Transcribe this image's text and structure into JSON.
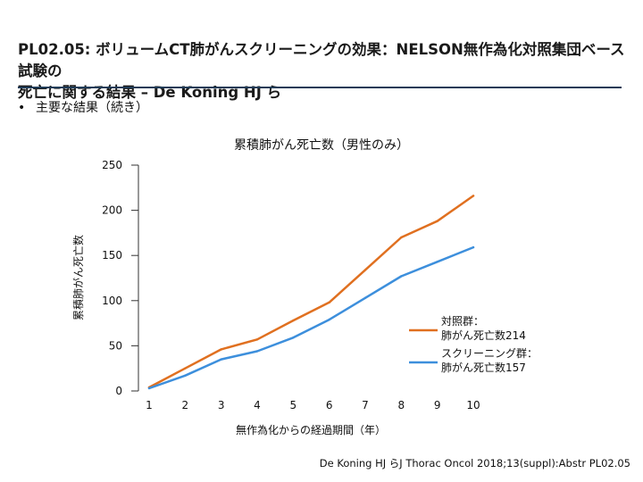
{
  "header": {
    "title_line1": "PL02.05: ボリュームCT肺がんスクリーニングの効果：NELSON無作為化対照集団ベース試験の",
    "title_line2": "死亡に関する結果 – De Koning HJ ら"
  },
  "bullet": {
    "marker": "•",
    "text": "主要な結果（続き）"
  },
  "citation": "De Koning HJ らJ Thorac Oncol 2018;13(suppl):Abstr PL02.05",
  "colors": {
    "control": "#e07020",
    "screening": "#3d8fdc",
    "axis": "#333333"
  },
  "chart_data": {
    "type": "line",
    "title": "累積肺がん死亡数（男性のみ）",
    "xlabel": "無作為化からの経過期間（年）",
    "ylabel": "累積肺がん死亡数",
    "x": [
      1,
      2,
      3,
      4,
      5,
      6,
      7,
      8,
      9,
      10
    ],
    "xlim": [
      1,
      10
    ],
    "ylim": [
      0,
      250
    ],
    "yticks": [
      0,
      50,
      100,
      150,
      200,
      250
    ],
    "series": [
      {
        "name": "対照群：肺がん死亡数214",
        "legend_line1": "対照群：",
        "legend_line2": "肺がん死亡数214",
        "values": [
          4,
          25,
          46,
          57,
          78,
          98,
          134,
          170,
          188,
          216
        ]
      },
      {
        "name": "スクリーニング群：肺がん死亡数157",
        "legend_line1": "スクリーニング群：",
        "legend_line2": "肺がん死亡数157",
        "values": [
          3,
          17,
          35,
          44,
          59,
          79,
          103,
          127,
          143,
          159
        ]
      }
    ]
  }
}
